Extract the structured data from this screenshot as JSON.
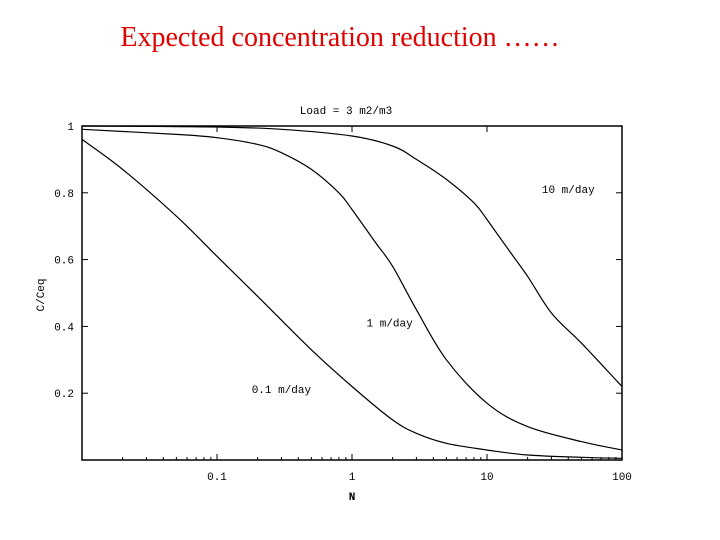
{
  "slide": {
    "title": "Expected concentration reduction ……"
  },
  "chart_data": {
    "type": "line",
    "title": "Load = 3 m2/m3",
    "xlabel": "N",
    "ylabel": "C/Ceq",
    "xscale": "log",
    "xlim": [
      0.01,
      100
    ],
    "ylim": [
      0,
      1
    ],
    "xticks": [
      {
        "value": 0.1,
        "label": "0.1"
      },
      {
        "value": 1,
        "label": "1"
      },
      {
        "value": 10,
        "label": "10"
      },
      {
        "value": 100,
        "label": "100"
      }
    ],
    "yticks": [
      {
        "value": 0.2,
        "label": "0.2"
      },
      {
        "value": 0.4,
        "label": "0.4"
      },
      {
        "value": 0.6,
        "label": "0.6"
      },
      {
        "value": 0.8,
        "label": "0.8"
      },
      {
        "value": 1,
        "label": "1"
      }
    ],
    "grid": false,
    "legend": "none",
    "series": [
      {
        "name": "0.1 m/day",
        "x": [
          0.01,
          0.02,
          0.05,
          0.1,
          0.2,
          0.5,
          1,
          2,
          3,
          5,
          10,
          20,
          50,
          100
        ],
        "y": [
          0.96,
          0.87,
          0.73,
          0.61,
          0.49,
          0.33,
          0.22,
          0.12,
          0.08,
          0.05,
          0.03,
          0.015,
          0.008,
          0.005
        ]
      },
      {
        "name": "1 m/day",
        "x": [
          0.01,
          0.05,
          0.1,
          0.2,
          0.3,
          0.5,
          0.8,
          1,
          1.5,
          2,
          3,
          5,
          10,
          20,
          50,
          100
        ],
        "y": [
          0.99,
          0.975,
          0.965,
          0.945,
          0.92,
          0.87,
          0.8,
          0.75,
          0.65,
          0.58,
          0.45,
          0.3,
          0.17,
          0.1,
          0.055,
          0.03
        ]
      },
      {
        "name": "10 m/day",
        "x": [
          0.01,
          0.1,
          0.3,
          1,
          2,
          3,
          5,
          8,
          10,
          15,
          20,
          30,
          50,
          100
        ],
        "y": [
          1.0,
          0.997,
          0.99,
          0.97,
          0.94,
          0.9,
          0.84,
          0.77,
          0.72,
          0.62,
          0.55,
          0.44,
          0.35,
          0.22
        ]
      }
    ],
    "annotations": [
      {
        "text": "10 m/day",
        "x": 40,
        "y": 0.8
      },
      {
        "text": "1 m/day",
        "x": 1.9,
        "y": 0.4
      },
      {
        "text": "0.1 m/day",
        "x": 0.3,
        "y": 0.2
      }
    ]
  }
}
